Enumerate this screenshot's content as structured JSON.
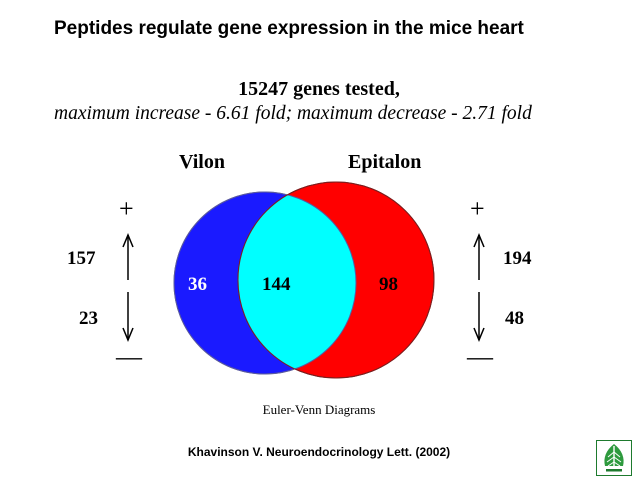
{
  "slide": {
    "title": "Peptides  regulate gene expression in the mice heart",
    "subtitle_line1": "15247 genes tested,",
    "subtitle_line2": "maximum increase - 6.61 fold; maximum decrease - 2.71 fold",
    "caption": "Euler-Venn Diagrams",
    "citation": "Khavinson V. Neuroendocrinology Lett. (2002)"
  },
  "venn": {
    "left_set": {
      "name": "Vilon",
      "only_count": "36",
      "color": "#1a1aff",
      "up_count": "157",
      "down_count": "23"
    },
    "right_set": {
      "name": "Epitalon",
      "only_count": "98",
      "color": "#ff0000",
      "up_count": "194",
      "down_count": "48"
    },
    "overlap": {
      "count": "144",
      "color": "#00ffff"
    },
    "plus_symbol": "+",
    "minus_symbol": "—"
  },
  "icons": {
    "logo": "leaf-tree-logo-icon",
    "up_arrow": "up-arrow-icon",
    "down_arrow": "down-arrow-icon"
  }
}
